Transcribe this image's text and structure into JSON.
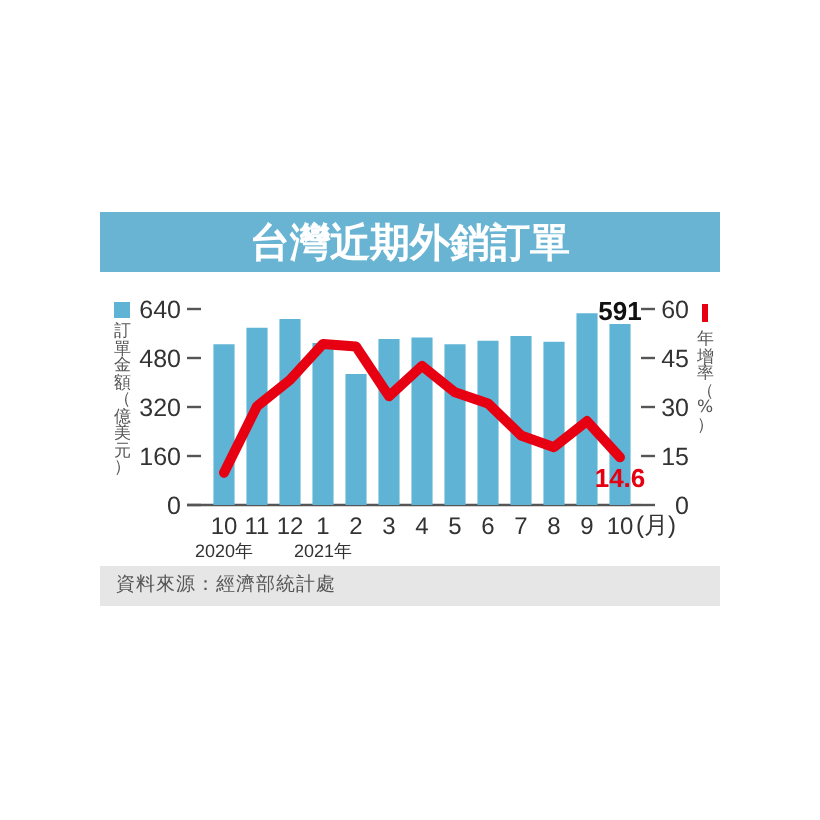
{
  "chart_data": {
    "type": "bar",
    "title": "台灣近期外銷訂單",
    "categories": [
      "10\n2020年",
      "11",
      "12",
      "1\n2021年",
      "2",
      "3",
      "4",
      "5",
      "6",
      "7",
      "8",
      "9",
      "10"
    ],
    "xlabel": "(月)",
    "ylabel": "訂單金額（億美元）",
    "y2label": "年增率（%）",
    "ylim": [
      0,
      640
    ],
    "yticks": [
      0,
      160,
      320,
      480,
      640
    ],
    "y2lim": [
      0,
      60
    ],
    "y2ticks": [
      0,
      15,
      30,
      45,
      60
    ],
    "series": [
      {
        "color": "#5fb4d6",
        "values": [
          525,
          579,
          607,
          529,
          428,
          542,
          547,
          525,
          536,
          552,
          533,
          626,
          591
        ],
        "value_labels": [
          null,
          null,
          null,
          null,
          null,
          null,
          null,
          null,
          null,
          null,
          null,
          null,
          "591"
        ]
      },
      {
        "type": "line",
        "axis": "y2",
        "color": "#e60012",
        "values": [
          9.9,
          30.2,
          38.3,
          49.3,
          48.5,
          33.3,
          42.6,
          34.5,
          31.1,
          21.3,
          17.7,
          25.7,
          14.6
        ],
        "value_labels": [
          null,
          null,
          null,
          null,
          null,
          null,
          null,
          null,
          null,
          null,
          null,
          null,
          "14.6"
        ]
      }
    ],
    "line_style": "solid",
    "annotations": [
      "資料來源：經濟部統計處"
    ]
  }
}
